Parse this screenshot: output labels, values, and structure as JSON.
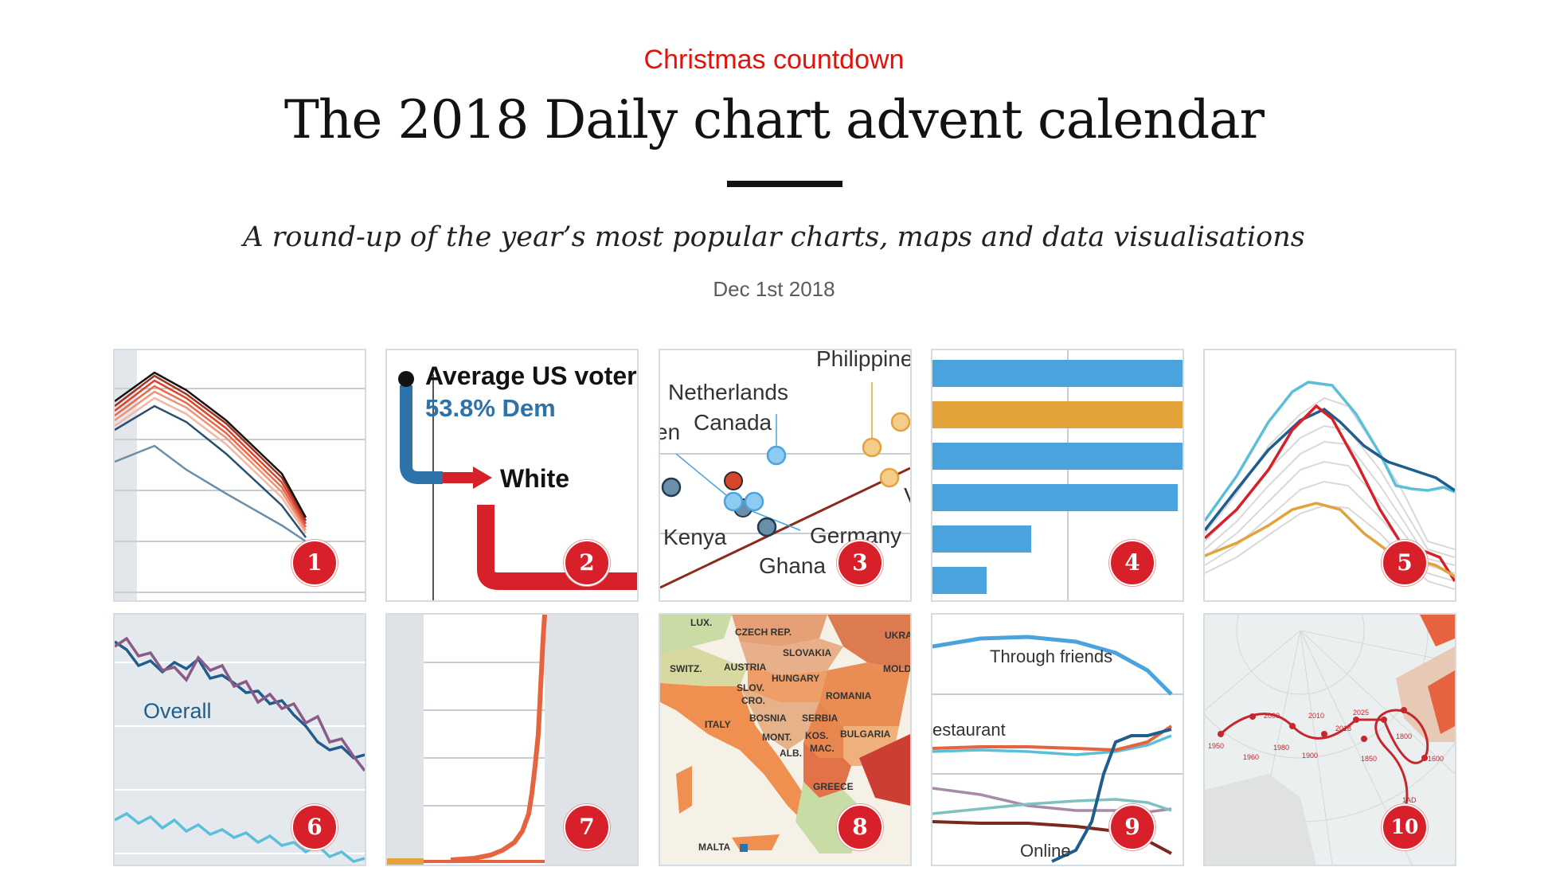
{
  "article": {
    "flytitle": "Christmas countdown",
    "headline": "The 2018 Daily chart advent calendar",
    "rubric": "A round-up of the year’s most popular charts, maps and data visualisations",
    "date": "Dec 1st 2018"
  },
  "colors": {
    "brand_red": "#e3120b",
    "badge_red": "#d7202a",
    "tile_border": "#d6dde2",
    "econ_blue": "#4aa3dd",
    "econ_orange": "#e4a33a",
    "econ_darkblue": "#1f5d8c"
  },
  "tiles": [
    {
      "number": "1"
    },
    {
      "number": "2",
      "labels": {
        "title": "Average US voter",
        "value": "53.8% Dem",
        "branch": "White"
      }
    },
    {
      "number": "3",
      "labels": {
        "philippines": "Philippine",
        "netherlands": "Netherlands",
        "canada": "Canada",
        "en": "en",
        "kenya": "Kenya",
        "germany": "Germany",
        "ghana": "Ghana",
        "v": "V"
      }
    },
    {
      "number": "4"
    },
    {
      "number": "5"
    },
    {
      "number": "6",
      "labels": {
        "overall": "Overall"
      }
    },
    {
      "number": "7"
    },
    {
      "number": "8",
      "labels": {
        "lux": "LUX.",
        "czech": "CZECH REP.",
        "ukra": "UKRA",
        "slovakia": "SLOVAKIA",
        "switz": "SWITZ.",
        "austria": "AUSTRIA",
        "hungary": "HUNGARY",
        "mold": "MOLD",
        "slov": "SLOV.",
        "cro": "CRO.",
        "romania": "ROMANIA",
        "italy": "ITALY",
        "bosnia": "BOSNIA",
        "serbia": "SERBIA",
        "mont": "MONT.",
        "kos": "KOS.",
        "bulgaria": "BULGARIA",
        "alb": "ALB.",
        "mac": "MAC.",
        "greece": "GREECE",
        "malta": "MALTA"
      }
    },
    {
      "number": "9",
      "labels": {
        "friends": "Through friends",
        "restaurant": "estaurant",
        "online": "Online"
      }
    },
    {
      "number": "10",
      "labels": {
        "y2000": "2000",
        "y2010": "2010",
        "y2025": "2025",
        "y2018": "2018",
        "y1950": "1950",
        "y1980": "1980",
        "y1800": "1800",
        "y1960": "1960",
        "y1900": "1900",
        "y1850": "1850",
        "y1600": "1600",
        "y1ad": "1AD"
      }
    }
  ]
}
